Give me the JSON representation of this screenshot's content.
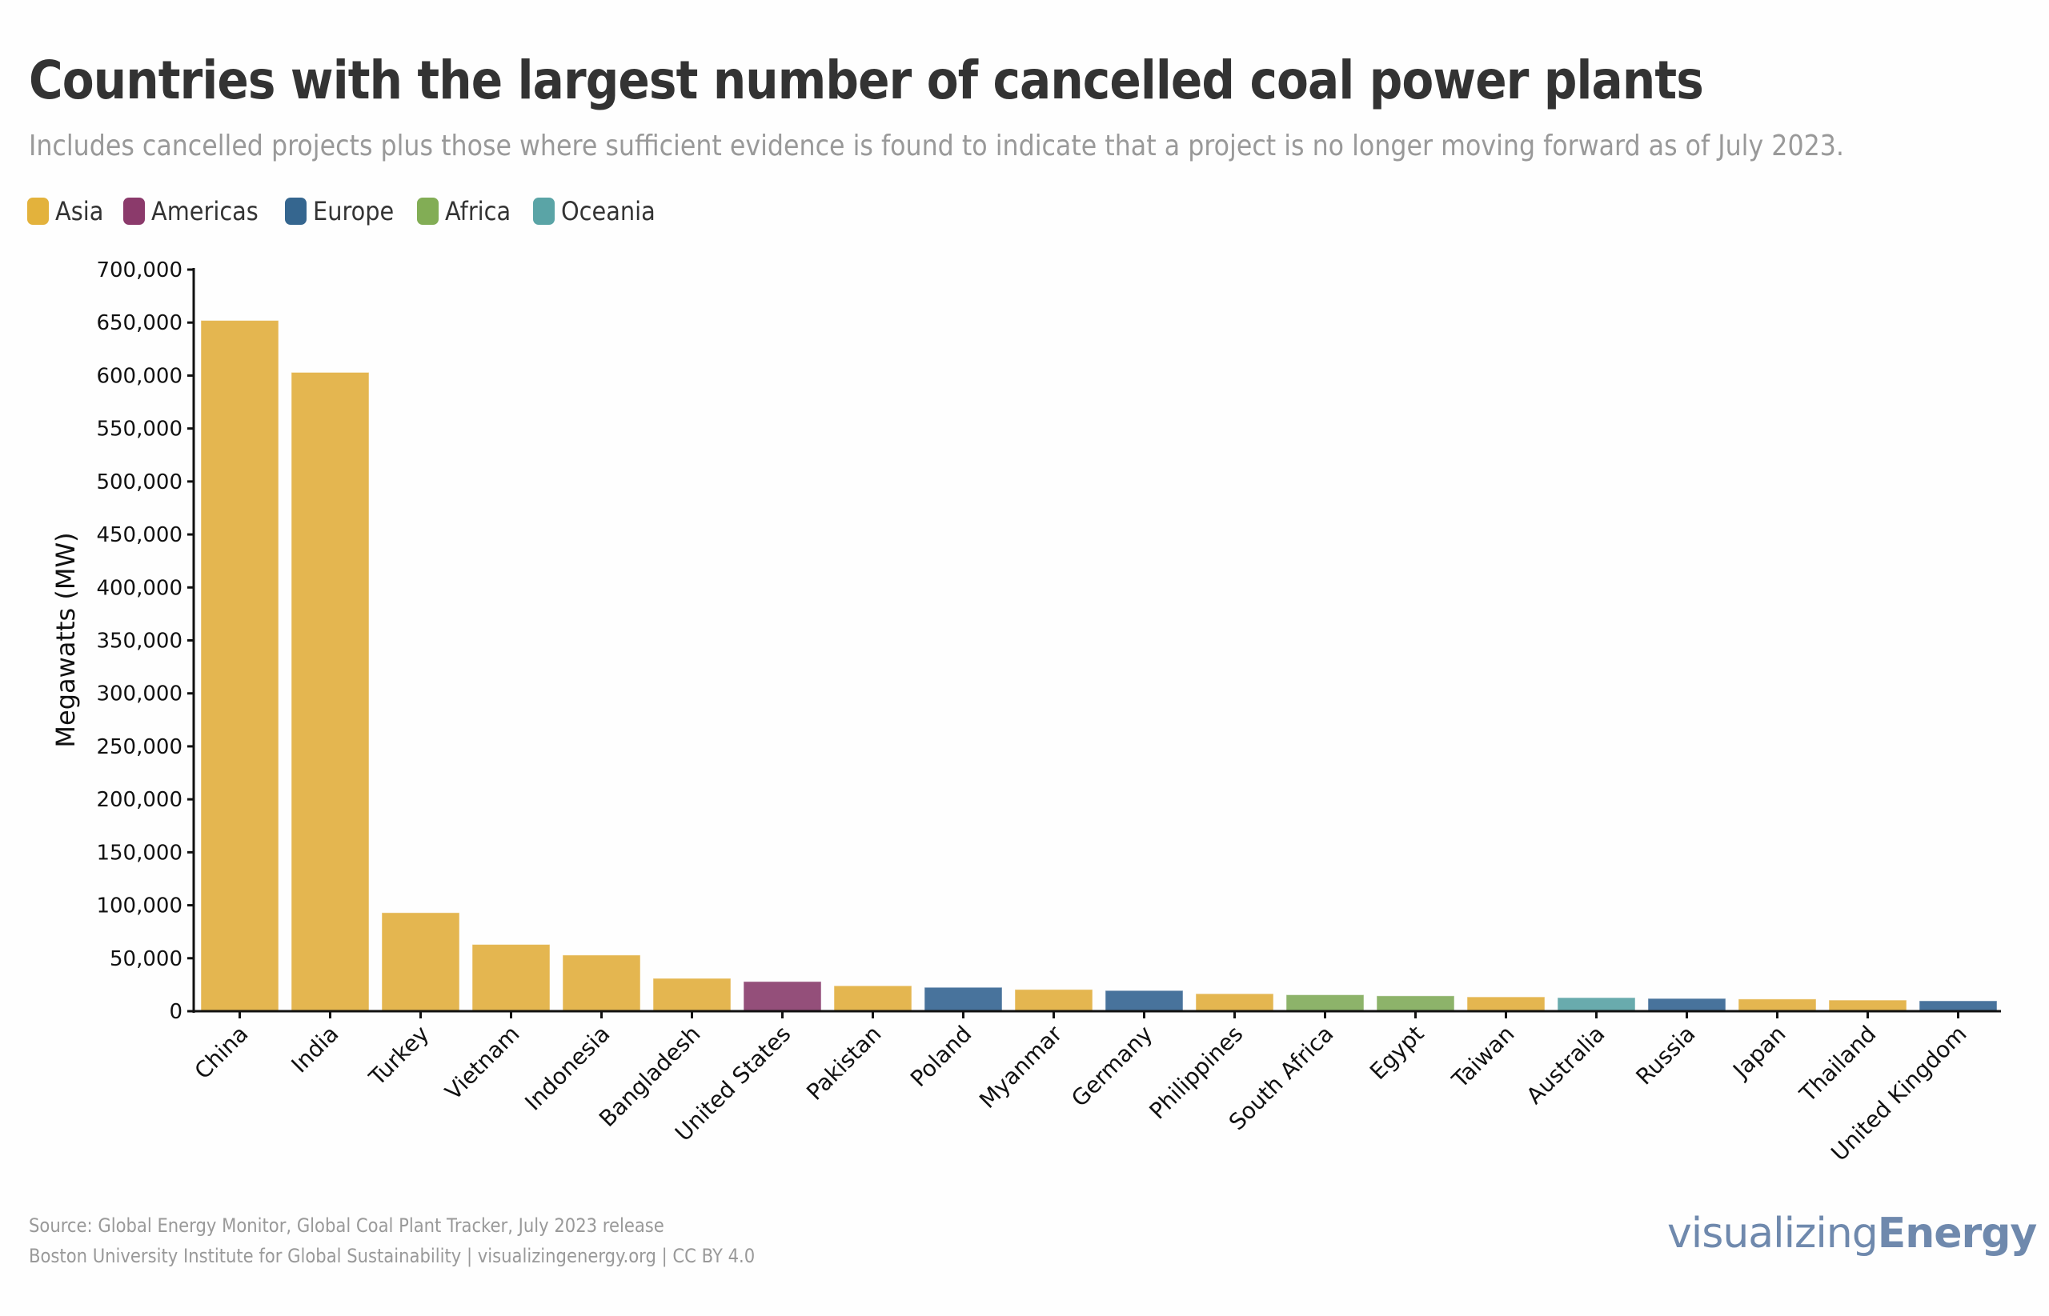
{
  "header": {
    "title": "Countries with the largest number of cancelled coal power plants",
    "subtitle": "Includes cancelled projects plus those where sufficient evidence is found to indicate that a project is no longer moving forward as of July 2023."
  },
  "legend": [
    {
      "label": "Asia",
      "color": "#e3b23c"
    },
    {
      "label": "Americas",
      "color": "#8b3a6b"
    },
    {
      "label": "Europe",
      "color": "#35668f"
    },
    {
      "label": "Africa",
      "color": "#82ad55"
    },
    {
      "label": "Oceania",
      "color": "#5aa4a6"
    }
  ],
  "footer": {
    "source": "Source: Global Energy Monitor, Global Coal Plant Tracker, July 2023 release",
    "credit": "Boston University Institute for Global Sustainability | visualizingenergy.org | CC BY 4.0",
    "logo_light": "visualizing",
    "logo_bold": "Energy"
  },
  "chart_data": {
    "type": "bar",
    "title": "Countries with the largest number of cancelled coal power plants",
    "xlabel": "",
    "ylabel": "Megawatts (MW)",
    "ylim": [
      0,
      700000
    ],
    "yticks": [
      0,
      50000,
      100000,
      150000,
      200000,
      250000,
      300000,
      350000,
      400000,
      450000,
      500000,
      550000,
      600000,
      650000,
      700000
    ],
    "ytick_labels": [
      "0",
      "50,000",
      "100,000",
      "150,000",
      "200,000",
      "250,000",
      "300,000",
      "350,000",
      "400,000",
      "450,000",
      "500,000",
      "550,000",
      "600,000",
      "650,000",
      "700,000"
    ],
    "grid": false,
    "legend_position": "top-left",
    "categories": [
      "China",
      "India",
      "Turkey",
      "Vietnam",
      "Indonesia",
      "Bangladesh",
      "United States",
      "Pakistan",
      "Poland",
      "Myanmar",
      "Germany",
      "Philippines",
      "South Africa",
      "Egypt",
      "Taiwan",
      "Australia",
      "Russia",
      "Japan",
      "Thailand",
      "United Kingdom"
    ],
    "values": [
      652000,
      603000,
      93000,
      63000,
      53000,
      31000,
      28000,
      24000,
      22500,
      20500,
      19500,
      16500,
      15500,
      14500,
      13500,
      12800,
      12000,
      11500,
      10500,
      9800
    ],
    "regions": [
      "Asia",
      "Asia",
      "Asia",
      "Asia",
      "Asia",
      "Asia",
      "Americas",
      "Asia",
      "Europe",
      "Asia",
      "Europe",
      "Asia",
      "Africa",
      "Africa",
      "Asia",
      "Oceania",
      "Europe",
      "Asia",
      "Asia",
      "Europe"
    ],
    "bar_colors": {
      "Asia": "#e4b650",
      "Americas": "#944f7a",
      "Europe": "#48739c",
      "Africa": "#8db36a",
      "Oceania": "#69abad"
    }
  }
}
